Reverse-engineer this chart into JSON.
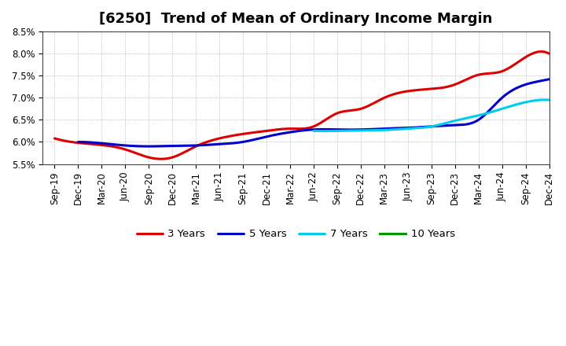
{
  "title": "[6250]  Trend of Mean of Ordinary Income Margin",
  "ylim": [
    0.055,
    0.085
  ],
  "yticks": [
    0.055,
    0.06,
    0.065,
    0.07,
    0.075,
    0.08,
    0.085
  ],
  "ytick_labels": [
    "5.5%",
    "6.0%",
    "6.5%",
    "7.0%",
    "7.5%",
    "8.0%",
    "8.5%"
  ],
  "x_labels": [
    "Sep-19",
    "Dec-19",
    "Mar-20",
    "Jun-20",
    "Sep-20",
    "Dec-20",
    "Mar-21",
    "Jun-21",
    "Sep-21",
    "Dec-21",
    "Mar-22",
    "Jun-22",
    "Sep-22",
    "Dec-22",
    "Mar-23",
    "Jun-23",
    "Sep-23",
    "Dec-23",
    "Mar-24",
    "Jun-24",
    "Sep-24",
    "Dec-24"
  ],
  "series_3y_x": [
    0,
    1,
    2,
    3,
    4,
    5,
    6,
    7,
    8,
    9,
    10,
    11,
    12,
    13,
    14,
    15,
    16,
    17,
    18,
    19,
    20,
    21
  ],
  "series_3y_y": [
    0.0608,
    0.0598,
    0.0593,
    0.0583,
    0.0565,
    0.0565,
    0.059,
    0.0608,
    0.0618,
    0.0625,
    0.063,
    0.0635,
    0.0665,
    0.0675,
    0.07,
    0.0715,
    0.072,
    0.073,
    0.0752,
    0.076,
    0.0792,
    0.08
  ],
  "series_5y_x": [
    1,
    2,
    3,
    4,
    5,
    6,
    7,
    8,
    9,
    10,
    11,
    12,
    13,
    14,
    15,
    16,
    17,
    18,
    19,
    20,
    21
  ],
  "series_5y_y": [
    0.06,
    0.0597,
    0.0592,
    0.059,
    0.0591,
    0.0592,
    0.0595,
    0.06,
    0.0612,
    0.0622,
    0.0628,
    0.0628,
    0.0628,
    0.063,
    0.0632,
    0.0635,
    0.0638,
    0.065,
    0.07,
    0.073,
    0.0742
  ],
  "series_7y_x": [
    11,
    12,
    13,
    14,
    15,
    16,
    17,
    18,
    19,
    20,
    21
  ],
  "series_7y_y": [
    0.0625,
    0.0625,
    0.0626,
    0.0627,
    0.063,
    0.0635,
    0.0648,
    0.066,
    0.0675,
    0.069,
    0.0695
  ],
  "series_10y_x": [],
  "series_10y_y": [],
  "color_3y": "#dd0000",
  "color_5y": "#0000cc",
  "color_7y": "#00ccee",
  "color_10y": "#009900",
  "legend_labels": [
    "3 Years",
    "5 Years",
    "7 Years",
    "10 Years"
  ],
  "background_color": "#ffffff",
  "grid_color": "#999999",
  "title_fontsize": 13,
  "tick_fontsize": 8.5,
  "lw": 2.2
}
